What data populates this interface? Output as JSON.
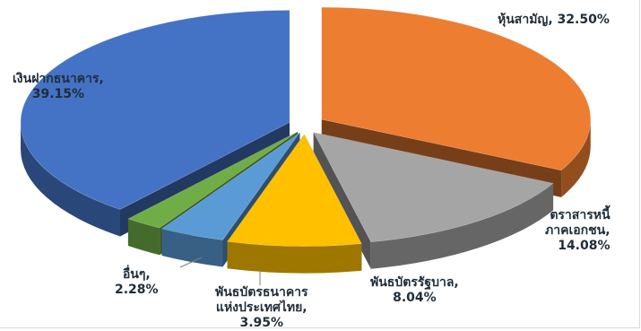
{
  "chart_data": {
    "type": "pie",
    "variant": "3d-exploded",
    "title": "",
    "slices": [
      {
        "name": "หุ้นสามัญ",
        "value": 32.5,
        "label": "32.50%",
        "color": "#ED7D31"
      },
      {
        "name": "ตราสารหนี้ภาคเอกชน",
        "value": 14.08,
        "label": "14.08%",
        "color": "#A5A5A5"
      },
      {
        "name": "พันธบัตรรัฐบาล",
        "value": 8.04,
        "label": "8.04%",
        "color": "#FFC000"
      },
      {
        "name": "พันธบัตรธนาคารแห่งประเทศไทย",
        "value": 3.95,
        "label": "3.95%",
        "color": "#5B9BD5"
      },
      {
        "name": "อื่นๆ",
        "value": 2.28,
        "label": "2.28%",
        "color": "#70AD47"
      },
      {
        "name": "เงินฝากธนาคาร",
        "value": 39.15,
        "label": "39.15%",
        "color": "#4472C4"
      }
    ],
    "labels": {
      "s0": {
        "line1": "หุ้นสามัญ, 32.50%"
      },
      "s1": {
        "line1": "ตราสารหนี้",
        "line2": "ภาคเอกชน,",
        "line3": "14.08%"
      },
      "s2": {
        "line1": "พันธบัตรรัฐบาล,",
        "line2": "8.04%"
      },
      "s3": {
        "line1": "พันธบัตรธนาคาร",
        "line2": "แห่งประเทศไทย,",
        "line3": "3.95%"
      },
      "s4": {
        "line1": "อื่นๆ,",
        "line2": "2.28%"
      },
      "s5": {
        "line1": "เงินฝากธนาคาร,",
        "line2": "39.15%"
      }
    }
  }
}
